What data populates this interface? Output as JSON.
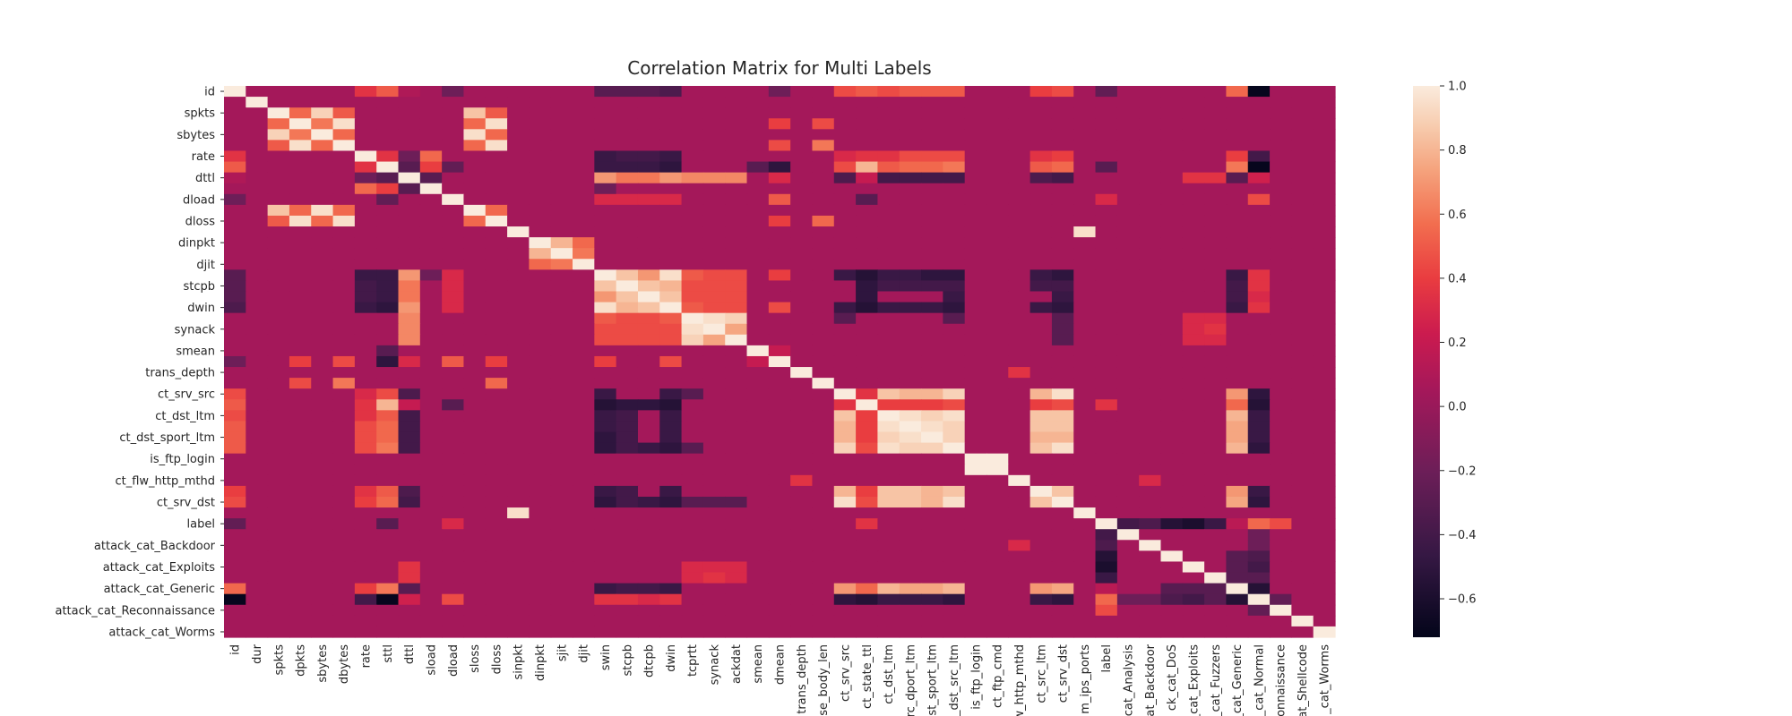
{
  "chart_data": {
    "type": "heatmap",
    "title": "Correlation Matrix for Multi Labels",
    "labels": [
      "id",
      "dur",
      "spkts",
      "dpkts",
      "sbytes",
      "dbytes",
      "rate",
      "sttl",
      "dttl",
      "sload",
      "dload",
      "sloss",
      "dloss",
      "sinpkt",
      "dinpkt",
      "sjit",
      "djit",
      "swin",
      "stcpb",
      "dtcpb",
      "dwin",
      "tcprtt",
      "synack",
      "ackdat",
      "smean",
      "dmean",
      "trans_depth",
      "response_body_len",
      "ct_srv_src",
      "ct_state_ttl",
      "ct_dst_ltm",
      "ct_src_dport_ltm",
      "ct_dst_sport_ltm",
      "ct_dst_src_ltm",
      "is_ftp_login",
      "ct_ftp_cmd",
      "ct_flw_http_mthd",
      "ct_src_ltm",
      "ct_srv_dst",
      "is_sm_ips_ports",
      "label",
      "attack_cat_Analysis",
      "attack_cat_Backdoor",
      "attack_cat_DoS",
      "attack_cat_Exploits",
      "attack_cat_Fuzzers",
      "attack_cat_Generic",
      "attack_cat_Normal",
      "attack_cat_Reconnaissance",
      "attack_cat_Shellcode",
      "attack_cat_Worms"
    ],
    "y_tick_labels": [
      "id",
      "spkts",
      "sbytes",
      "rate",
      "dttl",
      "dload",
      "dloss",
      "dinpkt",
      "djit",
      "stcpb",
      "dwin",
      "synack",
      "smean",
      "trans_depth",
      "ct_srv_src",
      "ct_dst_ltm",
      "ct_dst_sport_ltm",
      "is_ftp_login",
      "ct_flw_http_mthd",
      "ct_srv_dst",
      "label",
      "attack_cat_Backdoor",
      "attack_cat_Exploits",
      "attack_cat_Generic",
      "attack_cat_Reconnaissance",
      "attack_cat_Worms"
    ],
    "x_tick_labels": [
      "id",
      "dur",
      "spkts",
      "dpkts",
      "sbytes",
      "dbytes",
      "rate",
      "sttl",
      "dttl",
      "sload",
      "dload",
      "sloss",
      "dloss",
      "sinpkt",
      "dinpkt",
      "sjit",
      "djit",
      "swin",
      "stcpb",
      "dtcpb",
      "dwin",
      "tcprtt",
      "synack",
      "ackdat",
      "smean",
      "dmean",
      "trans_depth",
      "se_body_len",
      "ct_srv_src",
      "ct_state_ttl",
      "ct_dst_ltm",
      "rc_dport_ltm",
      "st_sport_ltm",
      "_dst_src_ltm",
      "is_ftp_login",
      "ct_ftp_cmd",
      "w_http_mthd",
      "ct_src_ltm",
      "ct_srv_dst",
      "m_ips_ports",
      "label",
      "cat_Analysis",
      "cat_Backdoor",
      "ck_cat_DoS",
      "_cat_Exploits",
      "_cat_Fuzzers",
      "_cat_Generic",
      "_cat_Normal",
      "onnaissance",
      "at_Shellcode",
      "_cat_Worms"
    ],
    "colorbar": {
      "min": -0.72,
      "max": 1.0,
      "ticks": [
        1.0,
        0.8,
        0.6,
        0.4,
        0.2,
        0.0,
        -0.2,
        -0.4,
        -0.6
      ],
      "tick_labels": [
        "1.0",
        "0.8",
        "0.6",
        "0.4",
        "0.2",
        "0.0",
        "−0.2",
        "−0.4",
        "−0.6"
      ]
    },
    "default_value": 0.05,
    "cells": [
      [
        0,
        6,
        0.35
      ],
      [
        0,
        7,
        0.5
      ],
      [
        0,
        8,
        0.1
      ],
      [
        0,
        10,
        -0.2
      ],
      [
        0,
        17,
        -0.3
      ],
      [
        0,
        18,
        -0.3
      ],
      [
        0,
        19,
        -0.3
      ],
      [
        0,
        20,
        -0.35
      ],
      [
        0,
        25,
        -0.2
      ],
      [
        0,
        28,
        0.45
      ],
      [
        0,
        29,
        0.5
      ],
      [
        0,
        30,
        0.45
      ],
      [
        0,
        31,
        0.5
      ],
      [
        0,
        32,
        0.5
      ],
      [
        0,
        33,
        0.5
      ],
      [
        0,
        37,
        0.4
      ],
      [
        0,
        38,
        0.45
      ],
      [
        0,
        40,
        -0.25
      ],
      [
        0,
        46,
        0.55
      ],
      [
        0,
        47,
        -0.7
      ],
      [
        2,
        3,
        0.55
      ],
      [
        2,
        4,
        0.9
      ],
      [
        2,
        5,
        0.5
      ],
      [
        3,
        4,
        0.6
      ],
      [
        3,
        5,
        0.95
      ],
      [
        4,
        5,
        0.55
      ],
      [
        2,
        11,
        0.85
      ],
      [
        2,
        12,
        0.5
      ],
      [
        3,
        11,
        0.55
      ],
      [
        3,
        12,
        0.95
      ],
      [
        4,
        11,
        0.95
      ],
      [
        4,
        12,
        0.55
      ],
      [
        5,
        11,
        0.55
      ],
      [
        5,
        12,
        0.95
      ],
      [
        11,
        12,
        0.55
      ],
      [
        3,
        25,
        0.4
      ],
      [
        3,
        27,
        0.45
      ],
      [
        5,
        25,
        0.45
      ],
      [
        5,
        27,
        0.6
      ],
      [
        12,
        25,
        0.4
      ],
      [
        12,
        27,
        0.55
      ],
      [
        6,
        7,
        0.35
      ],
      [
        6,
        8,
        -0.2
      ],
      [
        6,
        9,
        0.55
      ],
      [
        6,
        17,
        -0.45
      ],
      [
        6,
        18,
        -0.4
      ],
      [
        6,
        19,
        -0.4
      ],
      [
        6,
        20,
        -0.45
      ],
      [
        6,
        28,
        0.3
      ],
      [
        6,
        29,
        0.35
      ],
      [
        6,
        30,
        0.35
      ],
      [
        6,
        31,
        0.45
      ],
      [
        6,
        32,
        0.45
      ],
      [
        6,
        33,
        0.45
      ],
      [
        6,
        37,
        0.35
      ],
      [
        6,
        38,
        0.4
      ],
      [
        6,
        46,
        0.4
      ],
      [
        6,
        47,
        -0.4
      ],
      [
        7,
        8,
        -0.3
      ],
      [
        7,
        9,
        0.4
      ],
      [
        7,
        10,
        -0.25
      ],
      [
        7,
        17,
        -0.45
      ],
      [
        7,
        18,
        -0.45
      ],
      [
        7,
        19,
        -0.45
      ],
      [
        7,
        20,
        -0.5
      ],
      [
        7,
        24,
        -0.3
      ],
      [
        7,
        25,
        -0.5
      ],
      [
        7,
        28,
        0.45
      ],
      [
        7,
        29,
        0.8
      ],
      [
        7,
        30,
        0.5
      ],
      [
        7,
        31,
        0.55
      ],
      [
        7,
        32,
        0.55
      ],
      [
        7,
        33,
        0.6
      ],
      [
        7,
        37,
        0.5
      ],
      [
        7,
        38,
        0.55
      ],
      [
        7,
        40,
        -0.3
      ],
      [
        7,
        46,
        0.6
      ],
      [
        7,
        47,
        -0.7
      ],
      [
        8,
        9,
        -0.3
      ],
      [
        8,
        17,
        0.7
      ],
      [
        8,
        18,
        0.6
      ],
      [
        8,
        19,
        0.6
      ],
      [
        8,
        20,
        0.7
      ],
      [
        8,
        21,
        0.65
      ],
      [
        8,
        22,
        0.65
      ],
      [
        8,
        23,
        0.65
      ],
      [
        8,
        25,
        0.3
      ],
      [
        8,
        28,
        -0.35
      ],
      [
        8,
        29,
        0.2
      ],
      [
        8,
        30,
        -0.4
      ],
      [
        8,
        31,
        -0.4
      ],
      [
        8,
        32,
        -0.4
      ],
      [
        8,
        33,
        -0.4
      ],
      [
        8,
        37,
        -0.35
      ],
      [
        8,
        38,
        -0.4
      ],
      [
        8,
        44,
        0.35
      ],
      [
        8,
        45,
        0.35
      ],
      [
        8,
        46,
        -0.3
      ],
      [
        8,
        47,
        0.25
      ],
      [
        10,
        17,
        0.3
      ],
      [
        10,
        18,
        0.3
      ],
      [
        10,
        19,
        0.3
      ],
      [
        10,
        20,
        0.3
      ],
      [
        10,
        25,
        0.5
      ],
      [
        10,
        29,
        -0.3
      ],
      [
        10,
        40,
        0.3
      ],
      [
        10,
        47,
        0.45
      ],
      [
        9,
        17,
        -0.2
      ],
      [
        14,
        15,
        0.8
      ],
      [
        14,
        16,
        0.55
      ],
      [
        15,
        16,
        0.6
      ],
      [
        13,
        39,
        0.95
      ],
      [
        17,
        18,
        0.85
      ],
      [
        17,
        19,
        0.7
      ],
      [
        17,
        20,
        0.95
      ],
      [
        18,
        19,
        0.85
      ],
      [
        18,
        20,
        0.8
      ],
      [
        19,
        20,
        0.85
      ],
      [
        17,
        21,
        0.5
      ],
      [
        17,
        22,
        0.45
      ],
      [
        17,
        23,
        0.45
      ],
      [
        18,
        21,
        0.45
      ],
      [
        18,
        22,
        0.45
      ],
      [
        18,
        23,
        0.45
      ],
      [
        19,
        21,
        0.45
      ],
      [
        19,
        22,
        0.45
      ],
      [
        19,
        23,
        0.45
      ],
      [
        20,
        21,
        0.5
      ],
      [
        20,
        22,
        0.45
      ],
      [
        20,
        23,
        0.45
      ],
      [
        17,
        25,
        0.4
      ],
      [
        20,
        25,
        0.45
      ],
      [
        17,
        28,
        -0.45
      ],
      [
        17,
        29,
        -0.55
      ],
      [
        17,
        30,
        -0.45
      ],
      [
        17,
        31,
        -0.45
      ],
      [
        17,
        32,
        -0.5
      ],
      [
        17,
        33,
        -0.5
      ],
      [
        17,
        37,
        -0.45
      ],
      [
        17,
        38,
        -0.5
      ],
      [
        17,
        46,
        -0.45
      ],
      [
        17,
        47,
        0.35
      ],
      [
        18,
        29,
        -0.5
      ],
      [
        18,
        30,
        -0.4
      ],
      [
        18,
        31,
        -0.4
      ],
      [
        18,
        32,
        -0.4
      ],
      [
        18,
        33,
        -0.4
      ],
      [
        18,
        37,
        -0.4
      ],
      [
        18,
        38,
        -0.4
      ],
      [
        18,
        46,
        -0.4
      ],
      [
        18,
        47,
        0.35
      ],
      [
        20,
        28,
        -0.45
      ],
      [
        20,
        29,
        -0.55
      ],
      [
        20,
        30,
        -0.45
      ],
      [
        20,
        31,
        -0.45
      ],
      [
        20,
        32,
        -0.45
      ],
      [
        20,
        33,
        -0.5
      ],
      [
        20,
        37,
        -0.45
      ],
      [
        20,
        38,
        -0.5
      ],
      [
        20,
        46,
        -0.45
      ],
      [
        20,
        47,
        0.35
      ],
      [
        19,
        29,
        -0.5
      ],
      [
        19,
        33,
        -0.45
      ],
      [
        19,
        38,
        -0.45
      ],
      [
        19,
        46,
        -0.4
      ],
      [
        19,
        47,
        0.3
      ],
      [
        21,
        22,
        0.95
      ],
      [
        21,
        23,
        0.9
      ],
      [
        22,
        23,
        0.75
      ],
      [
        21,
        28,
        -0.3
      ],
      [
        21,
        33,
        -0.3
      ],
      [
        21,
        38,
        -0.3
      ],
      [
        22,
        38,
        -0.3
      ],
      [
        23,
        38,
        -0.3
      ],
      [
        21,
        44,
        0.3
      ],
      [
        21,
        45,
        0.3
      ],
      [
        22,
        44,
        0.3
      ],
      [
        22,
        45,
        0.35
      ],
      [
        23,
        44,
        0.3
      ],
      [
        23,
        45,
        0.3
      ],
      [
        24,
        25,
        0.2
      ],
      [
        26,
        36,
        0.35
      ],
      [
        28,
        29,
        0.35
      ],
      [
        28,
        30,
        0.85
      ],
      [
        28,
        31,
        0.8
      ],
      [
        28,
        32,
        0.8
      ],
      [
        28,
        33,
        0.9
      ],
      [
        28,
        37,
        0.8
      ],
      [
        28,
        38,
        0.95
      ],
      [
        28,
        46,
        0.7
      ],
      [
        29,
        30,
        0.4
      ],
      [
        29,
        31,
        0.4
      ],
      [
        29,
        32,
        0.4
      ],
      [
        29,
        33,
        0.45
      ],
      [
        29,
        37,
        0.4
      ],
      [
        29,
        38,
        0.45
      ],
      [
        29,
        46,
        0.55
      ],
      [
        29,
        47,
        -0.55
      ],
      [
        30,
        31,
        0.95
      ],
      [
        30,
        32,
        0.9
      ],
      [
        30,
        33,
        0.95
      ],
      [
        30,
        37,
        0.85
      ],
      [
        30,
        38,
        0.85
      ],
      [
        30,
        46,
        0.8
      ],
      [
        31,
        32,
        0.95
      ],
      [
        31,
        33,
        0.9
      ],
      [
        31,
        37,
        0.85
      ],
      [
        31,
        38,
        0.85
      ],
      [
        31,
        46,
        0.75
      ],
      [
        32,
        33,
        0.9
      ],
      [
        32,
        37,
        0.8
      ],
      [
        32,
        38,
        0.8
      ],
      [
        32,
        46,
        0.75
      ],
      [
        33,
        37,
        0.85
      ],
      [
        33,
        38,
        0.95
      ],
      [
        33,
        46,
        0.8
      ],
      [
        37,
        38,
        0.85
      ],
      [
        37,
        46,
        0.7
      ],
      [
        38,
        46,
        0.75
      ],
      [
        28,
        47,
        -0.5
      ],
      [
        30,
        47,
        -0.45
      ],
      [
        31,
        47,
        -0.45
      ],
      [
        32,
        47,
        -0.45
      ],
      [
        33,
        47,
        -0.5
      ],
      [
        37,
        47,
        -0.45
      ],
      [
        38,
        47,
        -0.5
      ],
      [
        34,
        35,
        1.0
      ],
      [
        36,
        42,
        0.3
      ],
      [
        40,
        41,
        -0.4
      ],
      [
        40,
        42,
        -0.35
      ],
      [
        40,
        43,
        -0.55
      ],
      [
        40,
        44,
        -0.6
      ],
      [
        40,
        45,
        -0.45
      ],
      [
        40,
        46,
        0.15
      ],
      [
        40,
        47,
        0.55
      ],
      [
        40,
        48,
        0.45
      ],
      [
        41,
        47,
        -0.2
      ],
      [
        42,
        47,
        -0.2
      ],
      [
        43,
        47,
        -0.35
      ],
      [
        44,
        47,
        -0.4
      ],
      [
        45,
        47,
        -0.3
      ],
      [
        46,
        47,
        -0.55
      ],
      [
        48,
        47,
        -0.25
      ],
      [
        44,
        46,
        -0.3
      ],
      [
        43,
        46,
        -0.3
      ],
      [
        45,
        46,
        -0.3
      ],
      [
        47,
        47,
        1.0
      ],
      [
        29,
        40,
        0.35
      ]
    ]
  }
}
